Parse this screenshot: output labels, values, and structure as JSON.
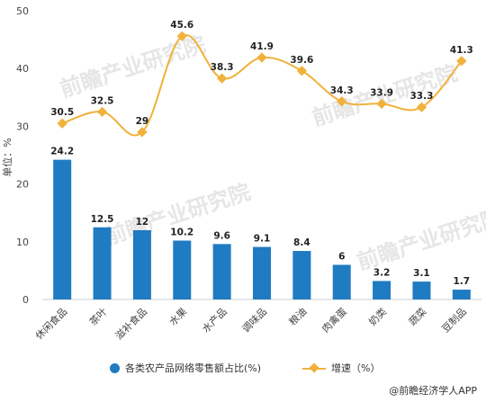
{
  "chart_data": {
    "type": "bar",
    "categories": [
      "休闲食品",
      "茶叶",
      "滋补食品",
      "水果",
      "水产品",
      "调味品",
      "粮油",
      "肉禽蛋",
      "奶类",
      "蔬菜",
      "豆制品"
    ],
    "series": [
      {
        "name": "各类农产品网络零售额占比(%)",
        "type": "bar",
        "color": "#1f7bc2",
        "values": [
          24.2,
          12.5,
          12,
          10.2,
          9.6,
          9.1,
          8.4,
          6,
          3.2,
          3.1,
          1.7
        ]
      },
      {
        "name": "增速（%）",
        "type": "line",
        "color": "#f0b23c",
        "values": [
          30.5,
          32.5,
          29,
          45.6,
          38.3,
          41.9,
          39.6,
          34.3,
          33.9,
          33.3,
          41.3
        ]
      }
    ],
    "ylabel": "单位：%",
    "ylim": [
      0,
      50
    ],
    "yticks": [
      0,
      10,
      20,
      30,
      40,
      50
    ],
    "grid": false,
    "legend": "bottom"
  },
  "watermark": "前瞻产业研究院",
  "source": "@前瞻经济学人APP"
}
